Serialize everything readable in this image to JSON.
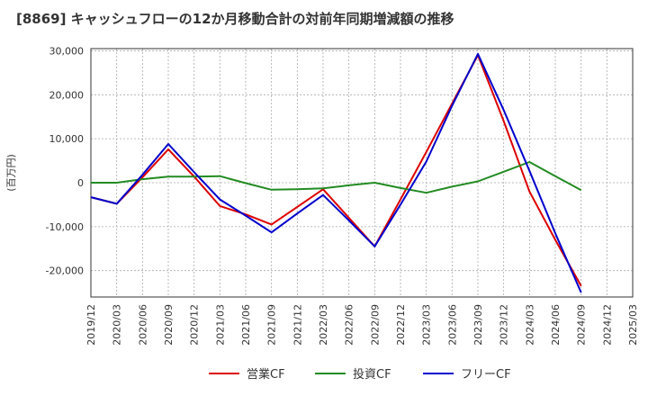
{
  "chart_data": {
    "type": "line",
    "title": "[8869]  キャッシュフローの12か月移動合計の対前年同期増減額の推移",
    "ylabel": "(百万円)",
    "xlabel": "",
    "categories": [
      "2019/12",
      "2020/03",
      "2020/06",
      "2020/09",
      "2020/12",
      "2021/03",
      "2021/06",
      "2021/09",
      "2021/12",
      "2022/03",
      "2022/06",
      "2022/09",
      "2022/12",
      "2023/03",
      "2023/06",
      "2023/09",
      "2023/12",
      "2024/03",
      "2024/06",
      "2024/09",
      "2024/12",
      "2025/03"
    ],
    "y_ticks": [
      30000,
      20000,
      10000,
      0,
      -10000,
      -20000
    ],
    "y_tick_labels": [
      "30,000",
      "20,000",
      "10,000",
      "0",
      "-10,000",
      "-20,000"
    ],
    "ylim": [
      -26000,
      30500
    ],
    "grid": true,
    "legend_position": "bottom",
    "series": [
      {
        "name": "営業CF",
        "color": "#dd0000",
        "values": [
          -3300,
          -4800,
          1200,
          7600,
          1400,
          -5300,
          -7200,
          -9500,
          -5500,
          -1500,
          -8000,
          -14500,
          -3800,
          7000,
          18000,
          29000,
          14000,
          -2000,
          -13000,
          -23500,
          null,
          null
        ]
      },
      {
        "name": "投資CF",
        "color": "#228b22",
        "values": [
          0,
          0,
          800,
          1400,
          1400,
          1500,
          -100,
          -1600,
          -1500,
          -1300,
          -600,
          0,
          -1200,
          -2300,
          -900,
          300,
          2500,
          4700,
          1500,
          -1700,
          null,
          null
        ]
      },
      {
        "name": "フリーCF",
        "color": "#0000cc",
        "values": [
          -3300,
          -4800,
          1800,
          8800,
          2400,
          -3800,
          -7500,
          -11300,
          -7000,
          -2800,
          -8600,
          -14500,
          -5000,
          4800,
          17500,
          29300,
          16500,
          2700,
          -11500,
          -25000,
          null,
          null
        ]
      }
    ]
  }
}
